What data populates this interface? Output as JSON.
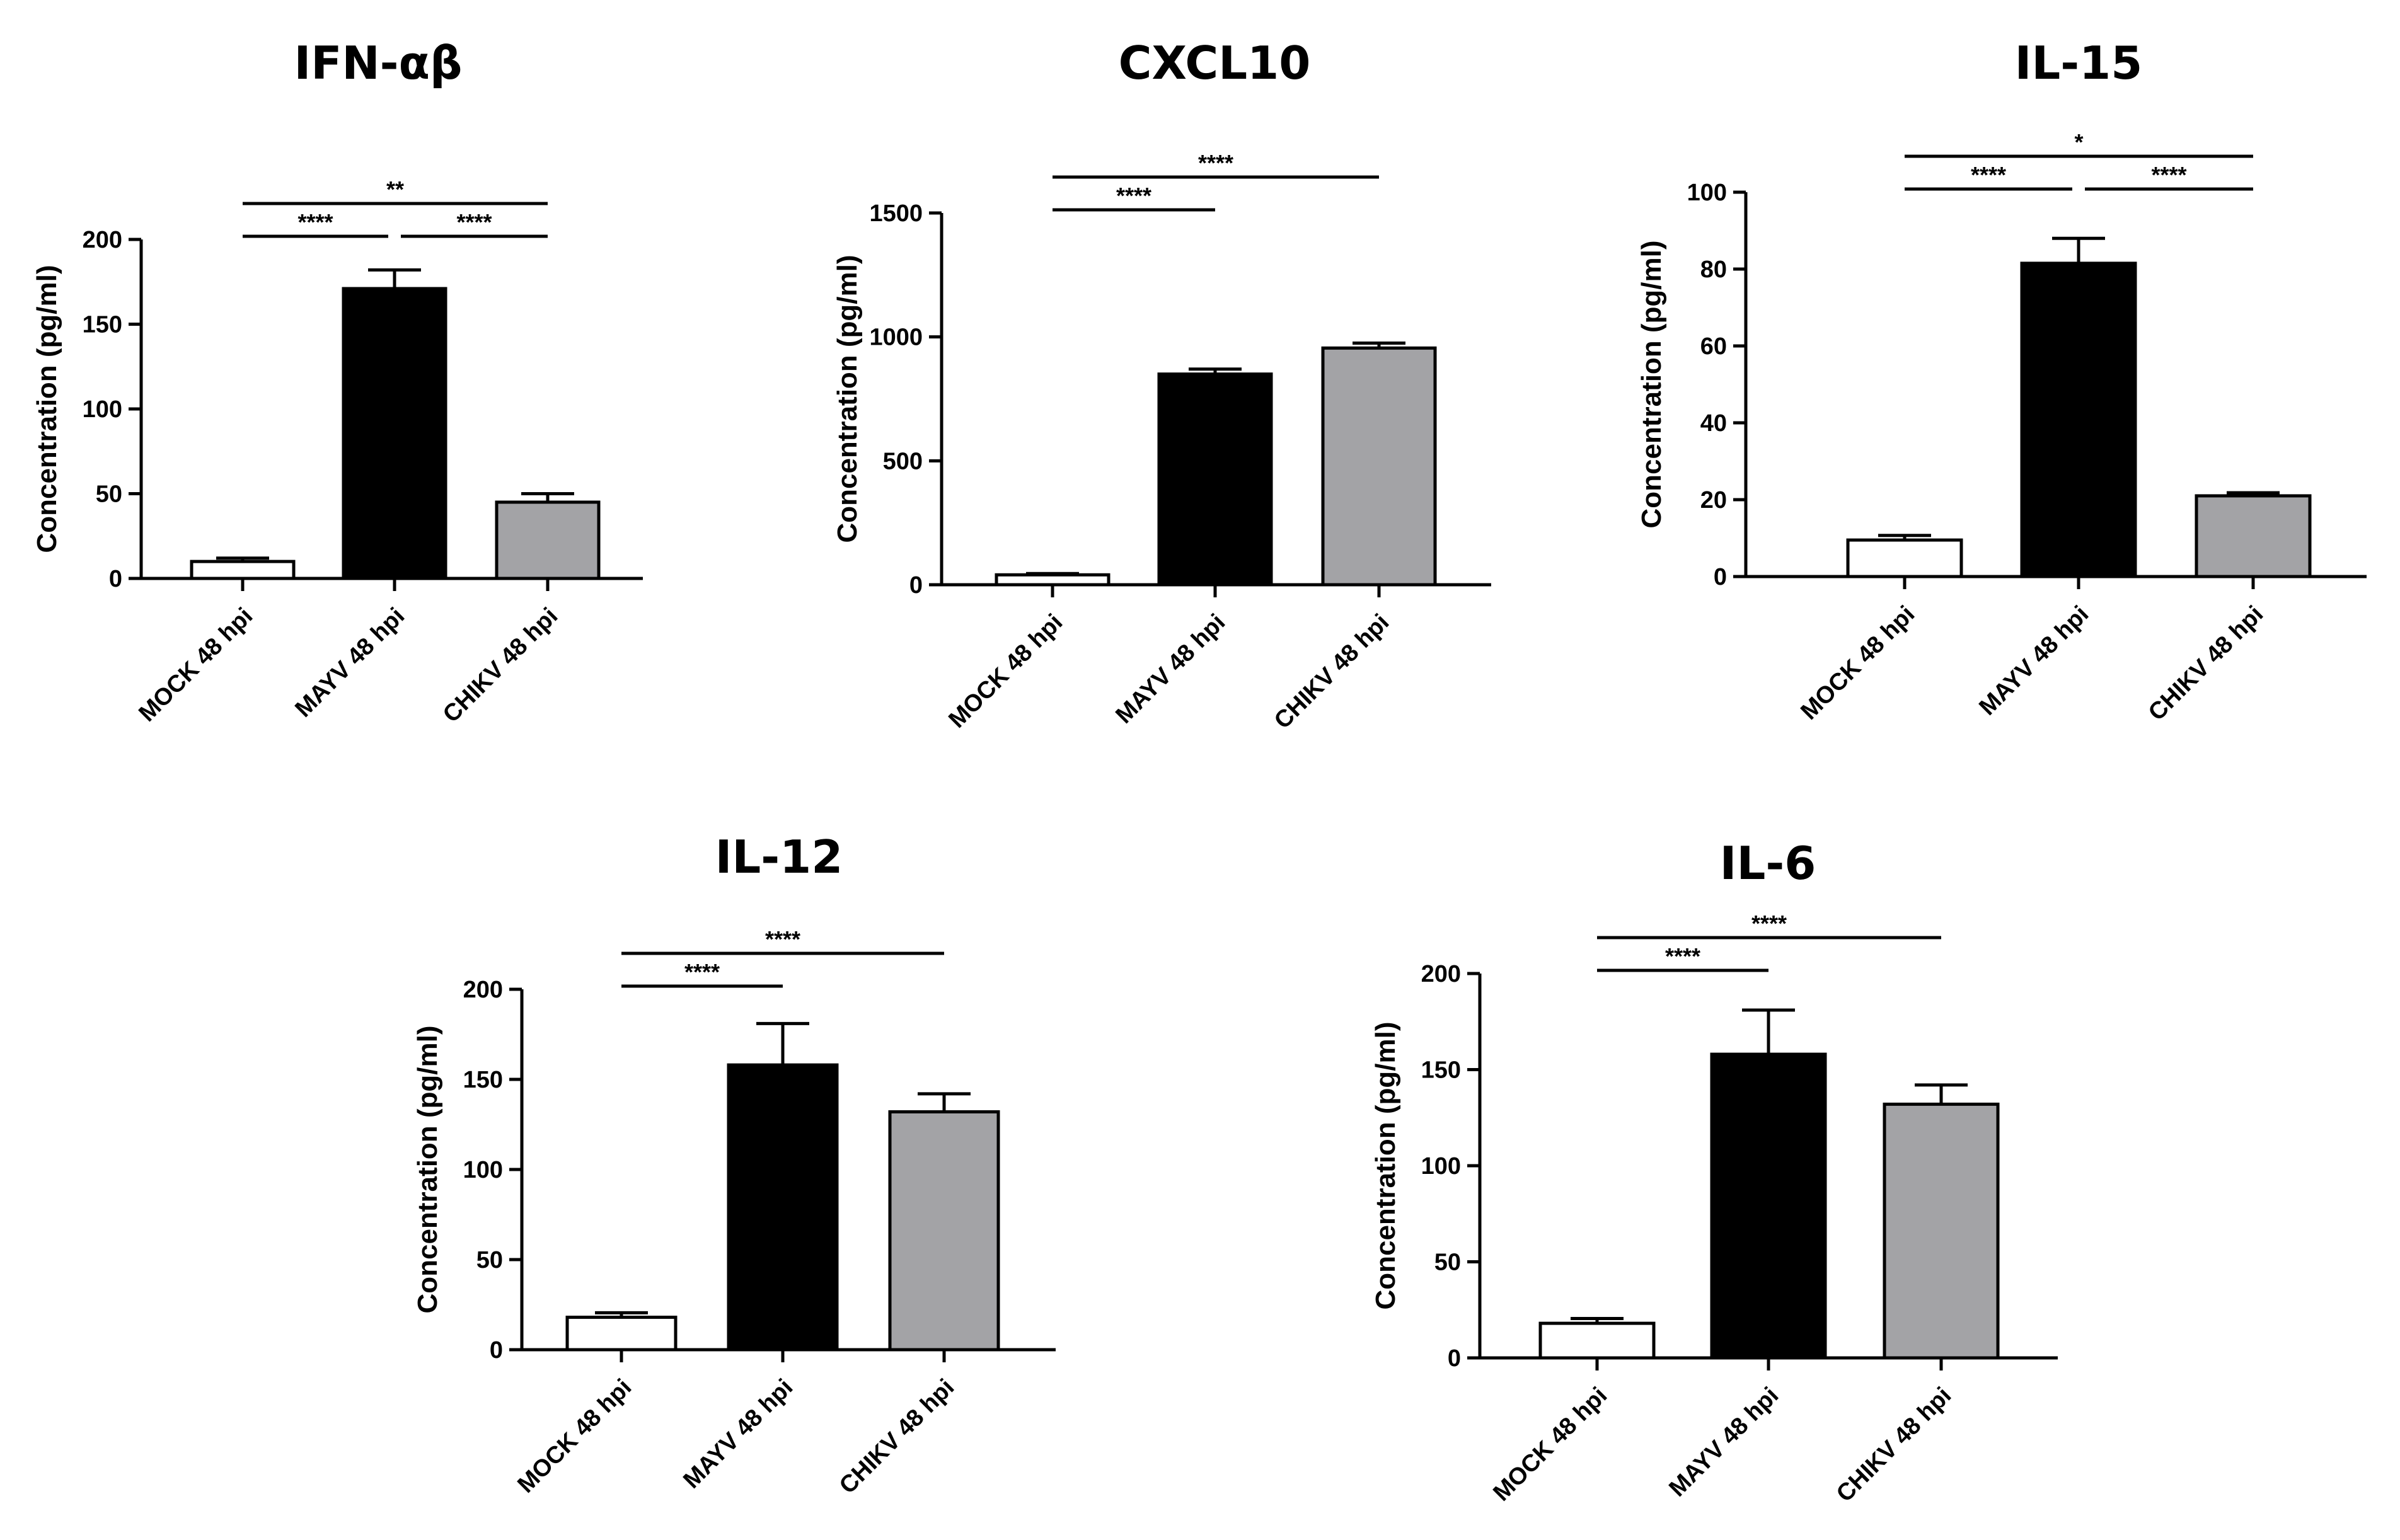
{
  "colors": {
    "MOCK": "#ffffff",
    "MAYV": "#000000",
    "CHIKV": "#a3a3a6",
    "stroke": "#000000"
  },
  "chart_data": [
    {
      "type": "bar",
      "title": "IFN-αβ",
      "ylabel": "Concentration (pg/ml)",
      "categories": [
        "MOCK 48 hpi",
        "MAYV 48 hpi",
        "CHIKV 48 hpi"
      ],
      "values": [
        10,
        171,
        45
      ],
      "errors": [
        2,
        11,
        5
      ],
      "ylim": [
        0,
        200
      ],
      "yticks": [
        0,
        50,
        100,
        150,
        200
      ],
      "significance": [
        {
          "from": 0,
          "to": 1,
          "level": 1,
          "label": "****"
        },
        {
          "from": 1,
          "to": 2,
          "level": 1,
          "label": "****"
        },
        {
          "from": 0,
          "to": 2,
          "level": 2,
          "label": "**"
        }
      ]
    },
    {
      "type": "bar",
      "title": "CXCL10",
      "ylabel": "Concentration (pg/ml)",
      "categories": [
        "MOCK 48 hpi",
        "MAYV 48 hpi",
        "CHIKV 48 hpi"
      ],
      "values": [
        40,
        850,
        955
      ],
      "errors": [
        5,
        20,
        20
      ],
      "ylim": [
        0,
        1500
      ],
      "yticks": [
        0,
        500,
        1000,
        1500
      ],
      "significance": [
        {
          "from": 0,
          "to": 1,
          "level": 1,
          "label": "****"
        },
        {
          "from": 0,
          "to": 2,
          "level": 2,
          "label": "****"
        }
      ]
    },
    {
      "type": "bar",
      "title": "IL-15",
      "ylabel": "Concentration (pg/ml)",
      "categories": [
        "MOCK 48 hpi",
        "MAYV 48 hpi",
        "CHIKV 48 hpi"
      ],
      "values": [
        9.5,
        81.5,
        21
      ],
      "errors": [
        1.2,
        6.5,
        0.8
      ],
      "ylim": [
        0,
        100
      ],
      "yticks": [
        0,
        20,
        40,
        60,
        80,
        100
      ],
      "significance": [
        {
          "from": 0,
          "to": 1,
          "level": 1,
          "label": "****"
        },
        {
          "from": 1,
          "to": 2,
          "level": 1,
          "label": "****"
        },
        {
          "from": 0,
          "to": 2,
          "level": 2,
          "label": "*"
        }
      ]
    },
    {
      "type": "bar",
      "title": "IL-12",
      "ylabel": "Concentration (pg/ml)",
      "categories": [
        "MOCK 48 hpi",
        "MAYV 48 hpi",
        "CHIKV 48 hpi"
      ],
      "values": [
        18,
        158,
        132
      ],
      "errors": [
        2.5,
        23,
        10
      ],
      "ylim": [
        0,
        200
      ],
      "yticks": [
        0,
        50,
        100,
        150,
        200
      ],
      "significance": [
        {
          "from": 0,
          "to": 1,
          "level": 1,
          "label": "****"
        },
        {
          "from": 0,
          "to": 2,
          "level": 2,
          "label": "****"
        }
      ]
    },
    {
      "type": "bar",
      "title": "IL-6",
      "ylabel": "Concentration (pg/ml)",
      "categories": [
        "MOCK 48 hpi",
        "MAYV 48 hpi",
        "CHIKV 48 hpi"
      ],
      "values": [
        18,
        158,
        132
      ],
      "errors": [
        2.5,
        23,
        10
      ],
      "ylim": [
        0,
        200
      ],
      "yticks": [
        0,
        50,
        100,
        150,
        200
      ],
      "significance": [
        {
          "from": 0,
          "to": 1,
          "level": 1,
          "label": "****"
        },
        {
          "from": 0,
          "to": 2,
          "level": 2,
          "label": "****"
        }
      ]
    }
  ]
}
